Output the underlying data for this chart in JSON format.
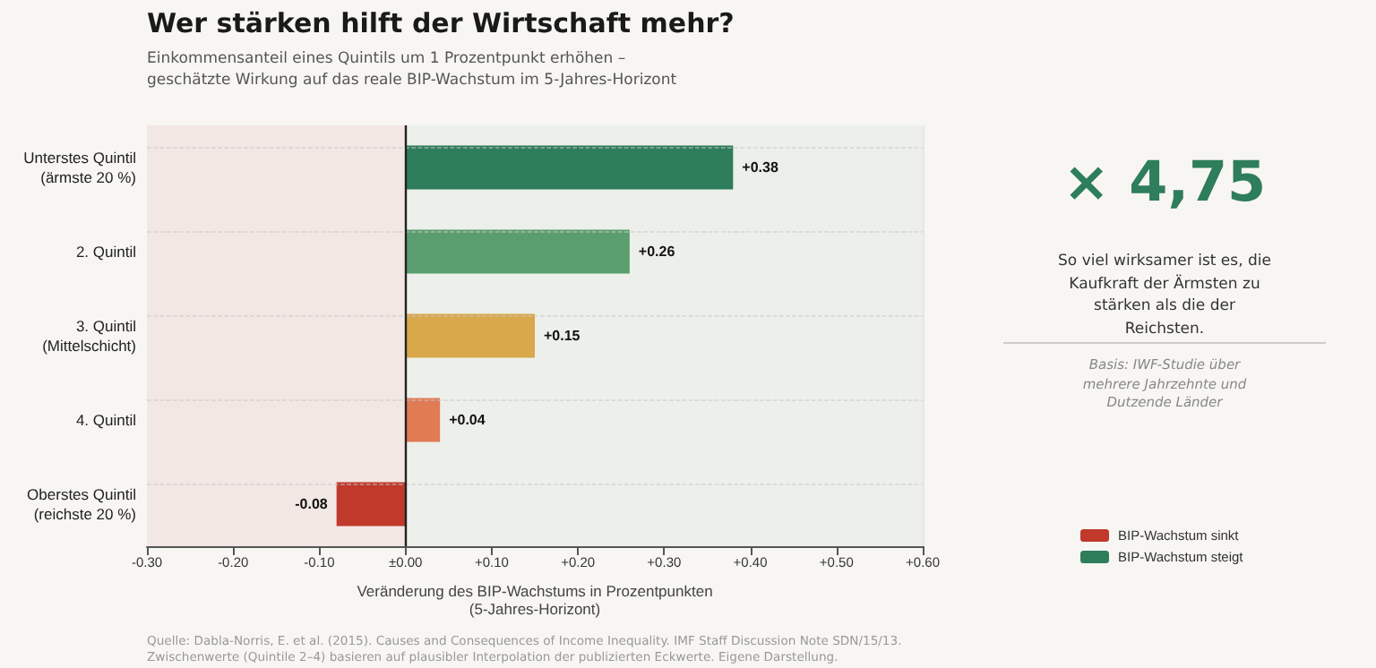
{
  "chart_data": {
    "type": "bar",
    "orientation": "horizontal",
    "title": "Wer stärken hilft der Wirtschaft mehr?",
    "subtitle": "Einkommensanteil eines Quintils um 1 Prozentpunkt erhöhen –\ngeschätzte Wirkung auf das reale BIP-Wachstum im 5-Jahres-Horizont",
    "xlabel": "Veränderung des BIP-Wachstums in Prozentpunkten\n(5-Jahres-Horizont)",
    "categories": [
      "Unterstes Quintil\n(ärmste 20 %)",
      "2. Quintil",
      "3. Quintil\n(Mittelschicht)",
      "4. Quintil",
      "Oberstes Quintil\n(reichste 20 %)"
    ],
    "series": [
      {
        "name": "BIP-Wachstum sinkt",
        "color": "#c0392b",
        "values": [
          null,
          null,
          null,
          null,
          -0.08
        ],
        "value_labels": [
          null,
          null,
          null,
          null,
          "-0.08"
        ]
      },
      {
        "name": "BIP-Wachstum steigt",
        "color": "#2e7d5b",
        "colors": [
          "#2e7d5b",
          "#5a9e6f",
          "#d9a84a",
          "#e07b54",
          null
        ],
        "values": [
          0.38,
          0.26,
          0.15,
          0.04,
          null
        ],
        "value_labels": [
          "+0.38",
          "+0.26",
          "+0.15",
          "+0.04",
          null
        ]
      }
    ],
    "xlim": [
      -0.3,
      0.6
    ],
    "xticks": [
      {
        "value": -0.3,
        "label": "-0.30"
      },
      {
        "value": -0.2,
        "label": "-0.20"
      },
      {
        "value": -0.1,
        "label": "-0.10"
      },
      {
        "value": 0,
        "label": "±0.00"
      },
      {
        "value": 0.1,
        "label": "+0.10"
      },
      {
        "value": 0.2,
        "label": "+0.20"
      },
      {
        "value": 0.3,
        "label": "+0.30"
      },
      {
        "value": 0.4,
        "label": "+0.40"
      },
      {
        "value": 0.5,
        "label": "+0.50"
      },
      {
        "value": 0.6,
        "label": "+0.60"
      }
    ],
    "ref_lines": [
      {
        "axis": "x",
        "value": 0,
        "color": "#222222"
      }
    ],
    "bands": [
      {
        "axis": "x",
        "from": -0.3,
        "to": 0,
        "color": "#f3e7e3"
      },
      {
        "axis": "x",
        "from": 0,
        "to": 0.6,
        "color": "#edf0ea"
      }
    ],
    "grid": true,
    "legend": "bottom right",
    "annotations": [
      "× 4,75",
      "So viel wirksamer ist es, die Kaufkraft der Ärmsten zu stärken als die der Reichsten.",
      "Basis: IWF-Studie über mehrere Jahrzehnte und Dutzende Länder",
      "Quelle: Dabla-Norris, E. et al. (2015). Causes and Consequences of Income Inequality. IMF Staff Discussion Note SDN/15/13.\nZwischenwerte (Quintile 2–4) basieren auf plausibler Interpolation der publizierten Eckwerte. Eigene Darstellung."
    ]
  }
}
